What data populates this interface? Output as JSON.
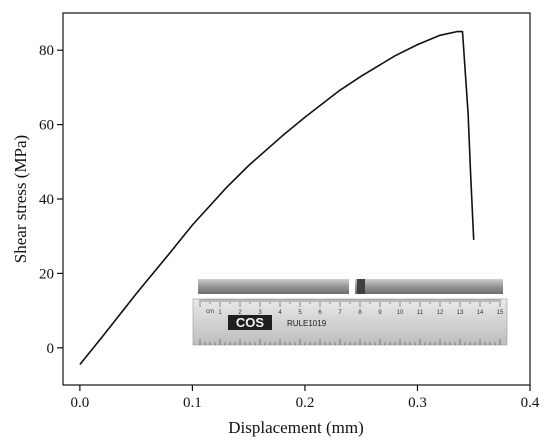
{
  "chart_data": {
    "type": "line",
    "xlabel": "Displacement (mm)",
    "ylabel": "Shear stress (MPa)",
    "xlim": [
      -0.015,
      0.4
    ],
    "ylim": [
      -10,
      90
    ],
    "xticks": [
      0.0,
      0.1,
      0.2,
      0.3,
      0.4
    ],
    "xtick_labels": [
      "0.0",
      "0.1",
      "0.2",
      "0.3",
      "0.4"
    ],
    "yticks": [
      0,
      20,
      40,
      60,
      80
    ],
    "ytick_labels": [
      "0",
      "20",
      "40",
      "60",
      "80"
    ],
    "grid": false,
    "series": [
      {
        "x": [
          0.0,
          0.02,
          0.05,
          0.08,
          0.1,
          0.13,
          0.15,
          0.18,
          0.2,
          0.23,
          0.25,
          0.28,
          0.3,
          0.32,
          0.335,
          0.34,
          0.345,
          0.347,
          0.35
        ],
        "y": [
          -4.5,
          3,
          14.5,
          25.5,
          33,
          43,
          49,
          57,
          62,
          69,
          73,
          78.5,
          81.5,
          84,
          85,
          85,
          63,
          48,
          29
        ]
      }
    ]
  },
  "inset": {
    "ruler_brand": "COS",
    "ruler_model": "RULE1019",
    "ruler_unit": "cm",
    "ruler_numbers": [
      "0",
      "1",
      "2",
      "3",
      "4",
      "5",
      "6",
      "7",
      "8",
      "9",
      "10",
      "11",
      "12",
      "13",
      "14",
      "15"
    ]
  }
}
